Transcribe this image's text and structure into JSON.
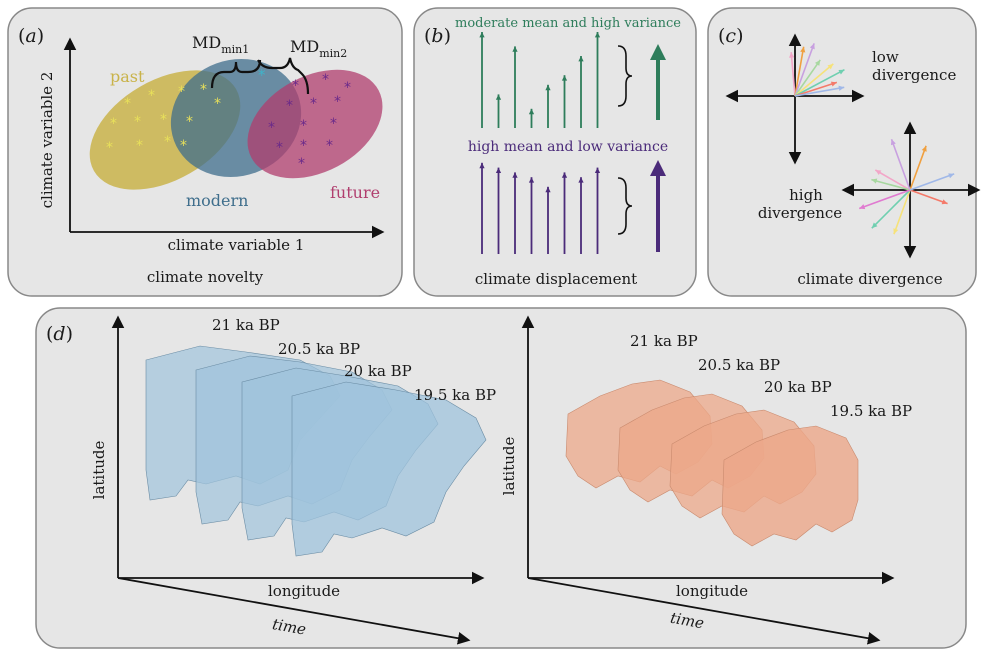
{
  "panels": {
    "a": {
      "tag_open": "(",
      "tag_letter": "a",
      "tag_close": ")",
      "caption": "climate novelty",
      "x_axis_label": "climate variable 1",
      "y_axis_label": "climate variable 2",
      "past_label": "past",
      "modern_label": "modern",
      "future_label": "future",
      "md1_main": "MD",
      "md1_sub": "min1",
      "md2_main": "MD",
      "md2_sub": "min2",
      "star_glyph": "*",
      "colors": {
        "past": "#c9b34a",
        "modern": "#3f6e8c",
        "future": "#b03e6e",
        "past_star": "#e8e05a",
        "future_star": "#6a2a8a"
      }
    },
    "b": {
      "tag_open": "(",
      "tag_letter": "b",
      "tag_close": ")",
      "caption": "climate displacement",
      "top_label": "moderate mean and high variance",
      "bottom_label": "high mean and low variance",
      "top_vector_lengths": [
        1.0,
        0.35,
        0.85,
        0.2,
        0.45,
        0.55,
        0.75,
        1.0
      ],
      "bottom_vector_lengths": [
        0.95,
        0.9,
        0.85,
        0.8,
        0.7,
        0.85,
        0.8,
        0.9
      ],
      "colors": {
        "top": "#2e7d5b",
        "bottom": "#4b2b7a"
      }
    },
    "c": {
      "tag_open": "(",
      "tag_letter": "c",
      "tag_close": ")",
      "caption": "climate divergence",
      "low_label_line1": "low",
      "low_label_line2": "divergence",
      "high_label_line1": "high",
      "high_label_line2": "divergence",
      "low_vector_angles_deg": [
        95,
        80,
        70,
        55,
        40,
        28,
        18,
        10
      ],
      "high_vector_angles_deg": [
        150,
        70,
        110,
        165,
        250,
        225,
        340,
        20,
        200
      ],
      "vector_colors": [
        "#f2a6c8",
        "#f0a040",
        "#c8a0e0",
        "#a8d8a0",
        "#f6e27a",
        "#6fcfb0",
        "#f47a6a",
        "#a0b8e8",
        "#e07ad0"
      ]
    },
    "d": {
      "tag_open": "(",
      "tag_letter": "d",
      "tag_close": ")",
      "latitude_label": "latitude",
      "longitude_label": "longitude",
      "time_label": "time",
      "time_slices": [
        "21 ka BP",
        "20.5 ka BP",
        "20 ka BP",
        "19.5 ka BP"
      ],
      "colors": {
        "north_america": "#9fc3dc",
        "europe": "#eca889"
      }
    }
  }
}
